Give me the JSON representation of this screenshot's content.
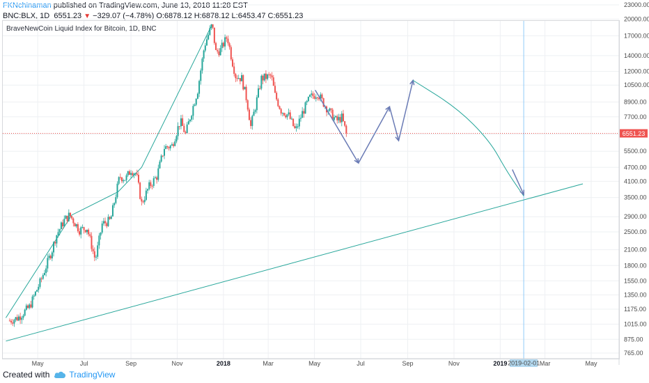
{
  "header": {
    "author": "FKNchinaman",
    "published": "published on TradingView.com, June 13, 2018 11:28 EST",
    "symbol": "BNC:BLX, 1D",
    "last": "6551.23",
    "change": "−329.07 (−4.78%)",
    "ohlc": "O:6878.12 H:6878.12 L:6453.47 C:6551.23"
  },
  "footer": {
    "created_with": "Created with",
    "brand": "TradingView"
  },
  "chart_data": {
    "type": "candlestick",
    "title": "BraveNewCoin Liquid Index for Bitcoin, 1D, BNC",
    "y_scale": "log",
    "ylim": [
      765,
      23000
    ],
    "y_ticks": [
      "23000.00",
      "20000.00",
      "17000.00",
      "14000.00",
      "12000.00",
      "10500.00",
      "8900.00",
      "7700.00",
      "6500.00",
      "5500.00",
      "4700.00",
      "4100.00",
      "3500.00",
      "2900.00",
      "2500.00",
      "2100.00",
      "1800.00",
      "1550.00",
      "1350.00",
      "1175.00",
      "1015.00",
      "875.00",
      "765.00"
    ],
    "x_ticks": [
      "May",
      "Jul",
      "Sep",
      "Nov",
      "2018",
      "Mar",
      "May",
      "Jul",
      "Sep",
      "Nov",
      "2019",
      "2019-02-01",
      "Mar",
      "May"
    ],
    "price_line": {
      "value": 6551.23,
      "label": "6551.23",
      "color": "#ef5350"
    },
    "crosshair_date": "2019-02-01",
    "colors": {
      "up": "#26a69a",
      "down": "#ef5350",
      "trend": "#26a69a",
      "projection": "#6a7bb5",
      "crosshair": "#90caf9"
    },
    "price_series": {
      "dates": [
        "2017-03-25",
        "2017-04-05",
        "2017-04-20",
        "2017-05-05",
        "2017-05-20",
        "2017-05-25",
        "2017-06-05",
        "2017-06-12",
        "2017-06-25",
        "2017-07-05",
        "2017-07-16",
        "2017-07-25",
        "2017-08-05",
        "2017-08-17",
        "2017-08-25",
        "2017-09-01",
        "2017-09-08",
        "2017-09-15",
        "2017-09-25",
        "2017-10-05",
        "2017-10-15",
        "2017-10-25",
        "2017-11-05",
        "2017-11-12",
        "2017-11-20",
        "2017-11-28",
        "2017-12-07",
        "2017-12-17",
        "2017-12-22",
        "2017-12-28",
        "2018-01-06",
        "2018-01-12",
        "2018-01-17",
        "2018-01-25",
        "2018-02-01",
        "2018-02-06",
        "2018-02-12",
        "2018-02-20",
        "2018-03-05",
        "2018-03-10",
        "2018-03-18",
        "2018-03-28",
        "2018-04-06",
        "2018-04-15",
        "2018-04-25",
        "2018-05-05",
        "2018-05-15",
        "2018-05-22",
        "2018-05-30",
        "2018-06-06",
        "2018-06-10",
        "2018-06-13"
      ],
      "closes": [
        1050,
        1080,
        1200,
        1550,
        2100,
        2400,
        2800,
        2950,
        2550,
        2600,
        1900,
        2700,
        2800,
        4300,
        4200,
        4600,
        4400,
        3300,
        3900,
        4300,
        5700,
        5800,
        7400,
        6500,
        8100,
        10000,
        15500,
        19000,
        14500,
        14800,
        16900,
        13500,
        11500,
        11200,
        9000,
        7000,
        8500,
        11200,
        11500,
        9500,
        8200,
        7800,
        6700,
        8000,
        9300,
        9700,
        8600,
        8000,
        7400,
        7650,
        6900,
        6551
      ]
    },
    "annotations": {
      "trendline_parabolic": {
        "dates": [
          "2017-03-20",
          "2017-06-15",
          "2017-08-15",
          "2017-09-15",
          "2017-12-17"
        ],
        "values": [
          1080,
          2950,
          3700,
          4700,
          19000
        ]
      },
      "trendline_support": {
        "dates": [
          "2017-03-20",
          "2019-04-20"
        ],
        "values": [
          860,
          4000
        ]
      },
      "projection_path": {
        "dates": [
          "2018-05-02",
          "2018-06-28",
          "2018-08-08",
          "2018-08-20",
          "2018-09-08"
        ],
        "values": [
          10000,
          4900,
          8500,
          6100,
          11000
        ]
      },
      "projection_curve": {
        "dates": [
          "2018-09-08",
          "2018-11-05",
          "2018-12-18",
          "2019-01-10",
          "2019-02-01"
        ],
        "values": [
          11000,
          8400,
          6100,
          4500,
          3550
        ]
      },
      "projection_arrow": {
        "dates": [
          "2019-01-17",
          "2019-02-01"
        ],
        "values": [
          4600,
          3600
        ]
      }
    }
  }
}
